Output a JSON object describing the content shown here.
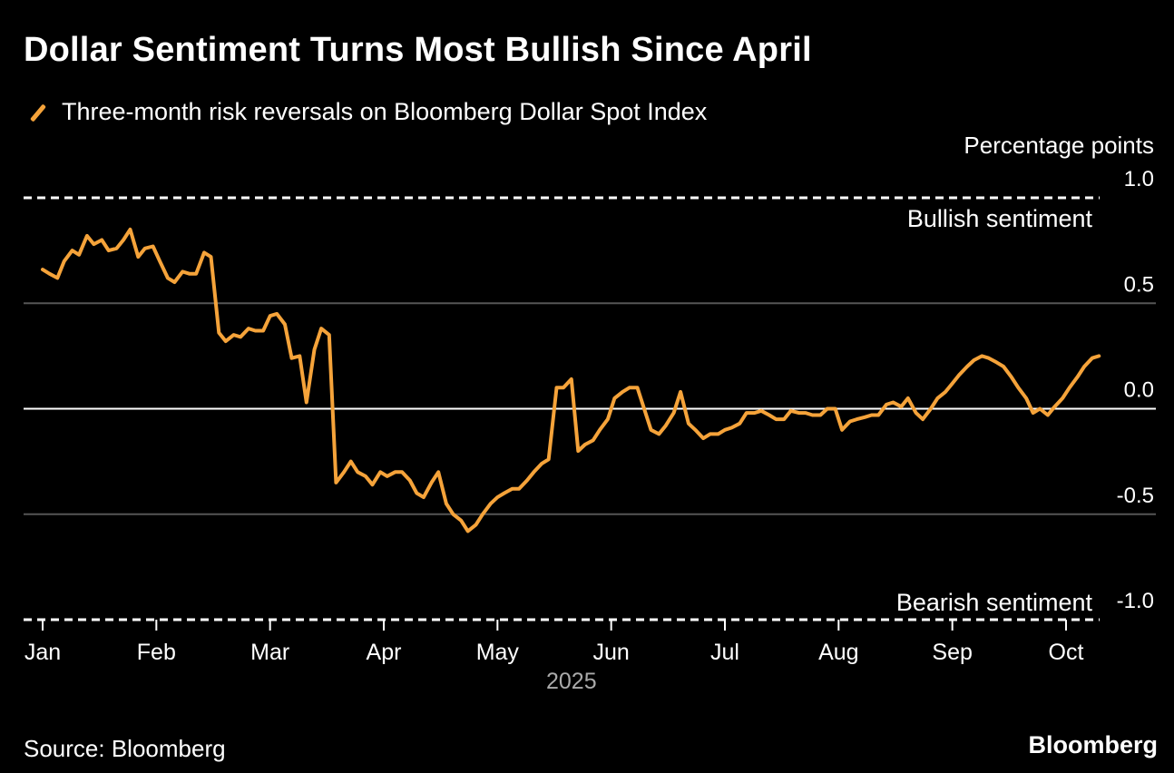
{
  "chart_data": {
    "type": "line",
    "title": "Dollar Sentiment Turns Most Bullish Since April",
    "legend": [
      "Three-month risk reversals on Bloomberg Dollar Spot Index"
    ],
    "ylabel": "Percentage points",
    "xlabel": "2025",
    "ylim": [
      -1.0,
      1.0
    ],
    "yticks": [
      1.0,
      0.5,
      0.0,
      -0.5,
      -1.0
    ],
    "ytick_labels": [
      "1.0",
      "0.5",
      "0.0",
      "-0.5",
      "-1.0"
    ],
    "xticks": [
      "Jan",
      "Feb",
      "Mar",
      "Apr",
      "May",
      "Jun",
      "Jul",
      "Aug",
      "Sep",
      "Oct"
    ],
    "x_label_year": "2025",
    "reference_lines": [
      {
        "y": 1.0,
        "label": "Bullish sentiment",
        "style": "dashed"
      },
      {
        "y": -1.0,
        "label": "Bearish sentiment",
        "style": "dashed"
      },
      {
        "y": 0.0,
        "label": "",
        "style": "solid"
      }
    ],
    "series": [
      {
        "name": "Three-month risk reversals on Bloomberg Dollar Spot Index",
        "color": "#f5a33a",
        "x_month": [
          0.0,
          0.06,
          0.13,
          0.19,
          0.26,
          0.32,
          0.39,
          0.45,
          0.52,
          0.58,
          0.65,
          0.71,
          0.77,
          0.84,
          0.9,
          0.97,
          1.03,
          1.1,
          1.16,
          1.23,
          1.29,
          1.35,
          1.42,
          1.48,
          1.55,
          1.61,
          1.68,
          1.74,
          1.81,
          1.87,
          1.94,
          2.0,
          2.06,
          2.13,
          2.19,
          2.26,
          2.32,
          2.39,
          2.45,
          2.52,
          2.58,
          2.65,
          2.71,
          2.77,
          2.84,
          2.9,
          2.97,
          3.03,
          3.1,
          3.16,
          3.23,
          3.29,
          3.35,
          3.42,
          3.48,
          3.55,
          3.61,
          3.68,
          3.74,
          3.81,
          3.87,
          3.94,
          4.0,
          4.06,
          4.13,
          4.19,
          4.26,
          4.32,
          4.39,
          4.45,
          4.52,
          4.58,
          4.65,
          4.71,
          4.77,
          4.84,
          4.9,
          4.97,
          5.03,
          5.1,
          5.16,
          5.23,
          5.29,
          5.35,
          5.42,
          5.48,
          5.55,
          5.61,
          5.68,
          5.74,
          5.81,
          5.87,
          5.94,
          6.0,
          6.06,
          6.13,
          6.19,
          6.26,
          6.32,
          6.39,
          6.45,
          6.52,
          6.58,
          6.65,
          6.71,
          6.77,
          6.84,
          6.9,
          6.97,
          7.03,
          7.1,
          7.16,
          7.23,
          7.29,
          7.35,
          7.42,
          7.48,
          7.55,
          7.61,
          7.68,
          7.74,
          7.81,
          7.87,
          7.94,
          8.0,
          8.06,
          8.13,
          8.19,
          8.26,
          8.32,
          8.39,
          8.45,
          8.52,
          8.58,
          8.65,
          8.71,
          8.77,
          8.84,
          8.9,
          8.97,
          9.03,
          9.1,
          9.16,
          9.23,
          9.29
        ],
        "values": [
          0.66,
          0.64,
          0.62,
          0.7,
          0.75,
          0.73,
          0.82,
          0.78,
          0.8,
          0.75,
          0.76,
          0.8,
          0.85,
          0.72,
          0.76,
          0.77,
          0.7,
          0.62,
          0.6,
          0.65,
          0.64,
          0.64,
          0.74,
          0.72,
          0.36,
          0.32,
          0.35,
          0.34,
          0.38,
          0.37,
          0.37,
          0.44,
          0.45,
          0.4,
          0.24,
          0.25,
          0.03,
          0.28,
          0.38,
          0.35,
          -0.35,
          -0.3,
          -0.25,
          -0.3,
          -0.32,
          -0.36,
          -0.3,
          -0.32,
          -0.3,
          -0.3,
          -0.34,
          -0.4,
          -0.42,
          -0.35,
          -0.3,
          -0.45,
          -0.5,
          -0.53,
          -0.58,
          -0.55,
          -0.5,
          -0.45,
          -0.42,
          -0.4,
          -0.38,
          -0.38,
          -0.34,
          -0.3,
          -0.26,
          -0.24,
          0.1,
          0.1,
          0.14,
          -0.2,
          -0.17,
          -0.15,
          -0.1,
          -0.05,
          0.05,
          0.08,
          0.1,
          0.1,
          0.0,
          -0.1,
          -0.12,
          -0.08,
          -0.02,
          0.08,
          -0.07,
          -0.1,
          -0.14,
          -0.12,
          -0.12,
          -0.1,
          -0.09,
          -0.07,
          -0.02,
          -0.02,
          -0.01,
          -0.03,
          -0.05,
          -0.05,
          -0.01,
          -0.02,
          -0.02,
          -0.03,
          -0.03,
          0.0,
          0.0,
          -0.1,
          -0.06,
          -0.05,
          -0.04,
          -0.03,
          -0.03,
          0.02,
          0.03,
          0.01,
          0.05,
          -0.02,
          -0.05,
          0.0,
          0.05,
          0.08,
          0.12,
          0.16,
          0.2,
          0.23,
          0.25,
          0.24,
          0.22,
          0.2,
          0.15,
          0.1,
          0.05,
          -0.02,
          0.0,
          -0.03,
          0.01,
          0.05,
          0.1,
          0.15,
          0.2,
          0.24,
          0.25
        ]
      }
    ]
  },
  "footer": {
    "source": "Source: Bloomberg",
    "brand": "Bloomberg"
  }
}
